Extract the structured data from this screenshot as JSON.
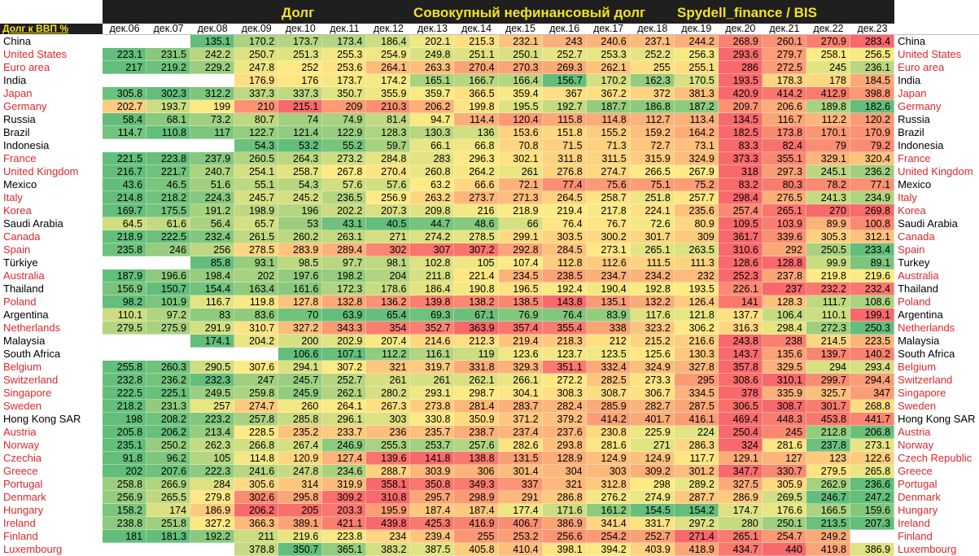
{
  "header": {
    "title_left": "Долг",
    "title_mid": "Совокупный нефинансовый долг",
    "title_right": "Spydell_finance / BIS",
    "row_header_label": "Долг к ВВП %"
  },
  "colors": {
    "low": "#63be7b",
    "mid": "#ffeb84",
    "high": "#f8696b",
    "band": "#1f1f1f",
    "title": "#f6e31c",
    "red_label": "#e0262c",
    "black_label": "#000000"
  },
  "chart_data": {
    "type": "heatmap",
    "title": "Совокупный нефинансовый долг",
    "ylabel": "Долг к ВВП %",
    "columns": [
      "дек.06",
      "дек.07",
      "дек.08",
      "дек.09",
      "дек.10",
      "дек.11",
      "дек.12",
      "дек.13",
      "дек.14",
      "дек.15",
      "дек.16",
      "дек.17",
      "дек.18",
      "дек.19",
      "дек.20",
      "дек.21",
      "дек.22",
      "дек.23"
    ],
    "rows": [
      {
        "name": "China",
        "right": "China",
        "red": false,
        "values": [
          null,
          null,
          135.1,
          170.2,
          173.7,
          173.4,
          186.4,
          202.1,
          215.3,
          232.1,
          243,
          240.6,
          237.1,
          244.2,
          268.9,
          260.1,
          270.9,
          283.4
        ]
      },
      {
        "name": "United States",
        "right": "United States",
        "red": true,
        "values": [
          223.1,
          231.5,
          242.2,
          250.7,
          251.3,
          255.3,
          254.9,
          249.8,
          251.1,
          250.1,
          252.7,
          253.3,
          252.2,
          256.3,
          293.6,
          279.7,
          258.1,
          256.5
        ]
      },
      {
        "name": "Euro area",
        "right": "Euro area",
        "red": true,
        "values": [
          217,
          219.2,
          229.2,
          247.8,
          252,
          253.6,
          264.1,
          263.3,
          270.4,
          270.3,
          269.3,
          262.1,
          255,
          255.1,
          286,
          272.5,
          245,
          236.1
        ]
      },
      {
        "name": "India",
        "right": "India",
        "red": false,
        "values": [
          null,
          null,
          null,
          176.9,
          176,
          173.7,
          174.2,
          165.1,
          166.7,
          166.4,
          156.7,
          170.2,
          162.3,
          170.5,
          193.5,
          178.3,
          178,
          184.5
        ]
      },
      {
        "name": "Japan",
        "right": "Japan",
        "red": true,
        "values": [
          305.8,
          302.3,
          312.2,
          337.3,
          337.3,
          350.7,
          355.9,
          359.7,
          366.5,
          359.4,
          367,
          367.2,
          372,
          381.3,
          420.9,
          414.2,
          412.9,
          398.8
        ]
      },
      {
        "name": "Germany",
        "right": "Germany",
        "red": true,
        "values": [
          202.7,
          193.7,
          199,
          210,
          215.1,
          209,
          210.3,
          206.2,
          199.8,
          195.5,
          192.7,
          187.7,
          186.8,
          187.2,
          209.7,
          206.6,
          189.8,
          182.6
        ]
      },
      {
        "name": "Russia",
        "right": "Russia",
        "red": false,
        "values": [
          58.4,
          68.1,
          73.2,
          80.7,
          74,
          74.9,
          81.4,
          94.7,
          114.4,
          120.4,
          115.8,
          114.8,
          112.7,
          113.4,
          134.5,
          116.7,
          112.2,
          120.2
        ]
      },
      {
        "name": "Brazil",
        "right": "Brazil",
        "red": false,
        "values": [
          114.7,
          110.8,
          117,
          122.7,
          121.4,
          122.9,
          128.3,
          130.3,
          136,
          153.6,
          151.8,
          155.2,
          159.2,
          164.2,
          182.5,
          173.8,
          170.1,
          170.9
        ]
      },
      {
        "name": "Indonesia",
        "right": "Indonesia",
        "red": false,
        "values": [
          null,
          null,
          null,
          54.3,
          53.2,
          55.2,
          59.7,
          66.1,
          66.8,
          70.8,
          71.5,
          71.3,
          72.7,
          73.1,
          83.3,
          82.4,
          79,
          79.2
        ]
      },
      {
        "name": "France",
        "right": "France",
        "red": true,
        "values": [
          221.5,
          223.8,
          237.9,
          260.5,
          264.3,
          273.2,
          284.8,
          283,
          296.3,
          302.1,
          311.8,
          311.5,
          315.9,
          324.9,
          373.3,
          355.1,
          329.1,
          320.4
        ]
      },
      {
        "name": "United Kingdom",
        "right": "United Kingdom",
        "red": true,
        "values": [
          216.7,
          221.7,
          240.7,
          254.1,
          258.7,
          267.8,
          270.4,
          260.8,
          264.2,
          261,
          276.8,
          274.7,
          266.5,
          267.9,
          318,
          297.3,
          245.1,
          236.2
        ]
      },
      {
        "name": "Mexico",
        "right": "Mexico",
        "red": false,
        "values": [
          43.6,
          46.5,
          51.6,
          55.1,
          54.3,
          57.6,
          57.6,
          63.2,
          66.6,
          72.1,
          77.4,
          75.6,
          75.1,
          75.2,
          83.2,
          80.3,
          78.2,
          77.1
        ]
      },
      {
        "name": "Italy",
        "right": "Italy",
        "red": true,
        "values": [
          214.8,
          218.2,
          224.3,
          245.7,
          245.2,
          236.5,
          256.9,
          263.2,
          273.7,
          271.3,
          264.5,
          258.7,
          251.8,
          257.7,
          298.4,
          276.5,
          241.3,
          234.9
        ]
      },
      {
        "name": "Korea",
        "right": "Korea",
        "red": true,
        "values": [
          169.7,
          175.5,
          191.2,
          198.9,
          196,
          202.2,
          207.3,
          209.8,
          216,
          218.9,
          219.4,
          217.8,
          224.1,
          235.6,
          257.4,
          265.1,
          270,
          269.8
        ]
      },
      {
        "name": "Saudi Arabia",
        "right": "Saudi Arabia",
        "red": false,
        "values": [
          64.5,
          61.6,
          56.4,
          65.7,
          53,
          43.1,
          40.5,
          44.7,
          48.6,
          66,
          76.4,
          76.7,
          72.6,
          80.9,
          109.5,
          103.9,
          89.9,
          100.8
        ]
      },
      {
        "name": "Canada",
        "right": "Canada",
        "red": true,
        "values": [
          218.9,
          222.5,
          232.4,
          261.5,
          260.2,
          263.1,
          271,
          274.2,
          278.5,
          299.1,
          303.5,
          300.2,
          301.7,
          309,
          361.7,
          339.6,
          305.3,
          312.1
        ]
      },
      {
        "name": "Spain",
        "right": "Spain",
        "red": true,
        "values": [
          235.8,
          246,
          256,
          278.5,
          283.9,
          289.4,
          302,
          307,
          307.2,
          292.8,
          284.5,
          273.1,
          265.1,
          263.5,
          310.6,
          292,
          250.5,
          233.4
        ]
      },
      {
        "name": "Türkiye",
        "right": "Turkey",
        "red": false,
        "values": [
          null,
          null,
          85.8,
          93.1,
          98.5,
          97.7,
          98.1,
          102.8,
          105,
          107.4,
          112.8,
          112.6,
          111.5,
          111.3,
          128.6,
          128.8,
          99.9,
          89.1
        ]
      },
      {
        "name": "Australia",
        "right": "Australia",
        "red": true,
        "values": [
          187.9,
          196.6,
          198.4,
          202,
          197.6,
          198.2,
          204,
          211.8,
          221.4,
          234.5,
          238.5,
          234.7,
          234.2,
          232,
          252.3,
          237.8,
          219.8,
          219.6
        ]
      },
      {
        "name": "Thailand",
        "right": "Thailand",
        "red": false,
        "values": [
          156.9,
          150.7,
          154.4,
          163.4,
          161.6,
          172.3,
          178.6,
          186.4,
          190.8,
          196.5,
          192.4,
          190.4,
          192.8,
          193.5,
          226.1,
          237,
          232.2,
          232.4
        ]
      },
      {
        "name": "Poland",
        "right": "Poland",
        "red": true,
        "values": [
          98.2,
          101.9,
          116.7,
          119.8,
          127.8,
          132.8,
          136.2,
          139.8,
          138.2,
          138.5,
          143.8,
          135.1,
          132.2,
          126.4,
          141,
          128.3,
          111.7,
          108.6
        ]
      },
      {
        "name": "Argentina",
        "right": "Argentina",
        "red": false,
        "values": [
          110.1,
          97.2,
          83,
          83.6,
          70,
          63.9,
          65.4,
          69.3,
          67.1,
          76.9,
          76.4,
          83.9,
          117.6,
          121.8,
          137.7,
          106.4,
          110.1,
          199.1
        ]
      },
      {
        "name": "Netherlands",
        "right": "Netherlands",
        "red": true,
        "values": [
          279.5,
          275.9,
          291.9,
          310.7,
          327.2,
          343.3,
          354,
          352.7,
          363.9,
          357.4,
          355.4,
          338,
          323.2,
          306.2,
          316.3,
          298.4,
          272.3,
          250.3
        ]
      },
      {
        "name": "Malaysia",
        "right": "Malaysia",
        "red": false,
        "values": [
          null,
          null,
          174.1,
          204.2,
          200,
          202.9,
          207.4,
          214.6,
          212.3,
          219.4,
          218.3,
          212,
          215.2,
          216.6,
          243.8,
          238,
          214.5,
          223.5
        ]
      },
      {
        "name": "South Africa",
        "right": "South Africa",
        "red": false,
        "values": [
          null,
          null,
          null,
          null,
          106.6,
          107.1,
          112.2,
          116.1,
          119,
          123.6,
          123.7,
          123.5,
          125.6,
          130.3,
          143.7,
          135.6,
          139.7,
          140.2
        ]
      },
      {
        "name": "Belgium",
        "right": "Belgium",
        "red": true,
        "values": [
          255.8,
          260.3,
          290.5,
          307.6,
          294.1,
          307.2,
          321,
          319.7,
          331.8,
          329.3,
          351.1,
          332.4,
          324.9,
          327.8,
          357.8,
          329.5,
          294,
          293.4
        ]
      },
      {
        "name": "Switzerland",
        "right": "Switzerland",
        "red": true,
        "values": [
          232.8,
          236.2,
          232.3,
          247,
          245.7,
          252.7,
          261,
          261,
          262.1,
          266.1,
          272.2,
          282.5,
          273.3,
          295,
          308.6,
          310.1,
          299.7,
          294.4
        ]
      },
      {
        "name": "Singapore",
        "right": "Singapore",
        "red": true,
        "values": [
          222.5,
          225.1,
          249.5,
          259.8,
          245.9,
          262.1,
          280.2,
          293.1,
          298.7,
          304.1,
          308.3,
          308.7,
          306.7,
          334.5,
          378,
          335.9,
          325.7,
          347
        ]
      },
      {
        "name": "Sweden",
        "right": "Sweden",
        "red": true,
        "values": [
          218.2,
          231.3,
          257,
          274.7,
          260,
          264.1,
          267.3,
          273.8,
          281.4,
          283.7,
          282.4,
          285.9,
          282.7,
          287.5,
          306.5,
          308.7,
          301.7,
          268.8
        ]
      },
      {
        "name": "Hong Kong SAR",
        "right": "Hong Kong SAR",
        "red": false,
        "values": [
          198,
          208.2,
          223.2,
          257.8,
          285.8,
          296.1,
          303,
          330.8,
          350.9,
          371.2,
          379.2,
          414.2,
          401.7,
          416.1,
          469.4,
          448.3,
          453.8,
          441.7
        ]
      },
      {
        "name": "Austria",
        "right": "Austria",
        "red": true,
        "values": [
          205.8,
          206.2,
          213.4,
          228.5,
          235.2,
          233.7,
          236,
          235.7,
          238.7,
          237.4,
          237.6,
          230.8,
          225.9,
          224,
          250.4,
          245,
          212.8,
          206.8
        ]
      },
      {
        "name": "Norway",
        "right": "Norway",
        "red": true,
        "values": [
          235.1,
          250.2,
          262.3,
          266.8,
          267.4,
          246.9,
          255.3,
          253.7,
          257.6,
          282.6,
          293.8,
          281.6,
          271,
          286.3,
          324,
          281.6,
          237.8,
          273.1
        ]
      },
      {
        "name": "Czechia",
        "right": "Czech Republic",
        "red": true,
        "values": [
          91.8,
          96.2,
          105,
          114.8,
          120.9,
          127.4,
          139.6,
          141.8,
          138.8,
          131.5,
          128.9,
          124.9,
          124.9,
          117.7,
          129.1,
          127,
          123,
          122.6
        ]
      },
      {
        "name": "Greece",
        "right": "Greece",
        "red": true,
        "values": [
          202,
          207.6,
          222.3,
          241.6,
          247.8,
          234.6,
          288.7,
          303.9,
          306,
          301.4,
          304,
          303,
          309.2,
          301.2,
          347.7,
          330.7,
          279.5,
          265.8
        ]
      },
      {
        "name": "Portugal",
        "right": "Portugal",
        "red": true,
        "values": [
          258.8,
          266.9,
          284,
          305.6,
          314,
          319.9,
          358.1,
          350.8,
          349.3,
          337,
          321,
          312.8,
          298,
          289.2,
          327.5,
          305.9,
          262.9,
          236.6
        ]
      },
      {
        "name": "Denmark",
        "right": "Denmark",
        "red": true,
        "values": [
          256.9,
          265.5,
          279.8,
          302.6,
          295.8,
          309.2,
          310.8,
          295.7,
          298.9,
          291,
          286.8,
          276.2,
          274.9,
          287.7,
          286.9,
          269.5,
          246.7,
          247.2
        ]
      },
      {
        "name": "Hungary",
        "right": "Hungary",
        "red": true,
        "values": [
          158.2,
          174,
          186.9,
          206.2,
          205,
          203.3,
          195.9,
          187.4,
          187.4,
          177.4,
          171.6,
          161.2,
          154.5,
          154.2,
          174.7,
          176.6,
          166.5,
          159.6
        ]
      },
      {
        "name": "Ireland",
        "right": "Ireland",
        "red": true,
        "values": [
          238.8,
          251.8,
          327.2,
          366.3,
          389.1,
          421.1,
          439.8,
          425.3,
          416.9,
          406.7,
          386.9,
          341.4,
          331.7,
          297.2,
          280,
          250.1,
          213.5,
          207.3
        ]
      },
      {
        "name": "Finland",
        "right": "Finland",
        "red": true,
        "values": [
          181,
          181.3,
          192.2,
          211,
          219.6,
          223.8,
          234,
          239.4,
          255,
          253.2,
          256.6,
          254.2,
          252.7,
          271.4,
          265.1,
          254.7,
          249.2,
          null
        ]
      },
      {
        "name": "Luxembourg",
        "right": "Luxembourg",
        "red": true,
        "values": [
          null,
          null,
          null,
          378.8,
          350.7,
          365.1,
          383.2,
          387.5,
          405.8,
          410.4,
          398.1,
          394.2,
          403.9,
          418.9,
          434.7,
          440,
          419.8,
          386.9
        ]
      }
    ]
  }
}
